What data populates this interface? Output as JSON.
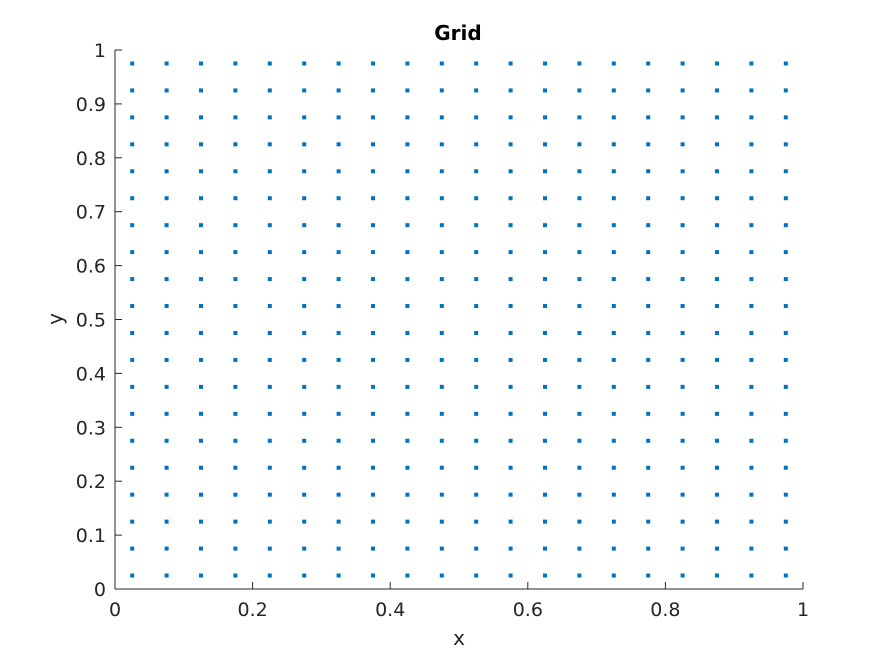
{
  "chart_data": {
    "type": "scatter",
    "title": "Grid",
    "xlabel": "x",
    "ylabel": "y",
    "xlim": [
      0,
      1
    ],
    "ylim": [
      0,
      1
    ],
    "xticks": [
      0,
      0.2,
      0.4,
      0.6,
      0.8,
      1
    ],
    "xtick_labels": [
      "0",
      "0.2",
      "0.4",
      "0.6",
      "0.8",
      "1"
    ],
    "yticks": [
      0,
      0.1,
      0.2,
      0.3,
      0.4,
      0.5,
      0.6,
      0.7,
      0.8,
      0.9,
      1
    ],
    "ytick_labels": [
      "0",
      "0.1",
      "0.2",
      "0.3",
      "0.4",
      "0.5",
      "0.6",
      "0.7",
      "0.8",
      "0.9",
      "1"
    ],
    "grid": false,
    "marker_color": "#0072BD",
    "axis_color": "#262626",
    "series": [
      {
        "x": [
          0.025,
          0.075,
          0.125,
          0.175,
          0.225,
          0.275,
          0.325,
          0.375,
          0.425,
          0.475,
          0.525,
          0.575,
          0.625,
          0.675,
          0.725,
          0.775,
          0.825,
          0.875,
          0.925,
          0.975
        ],
        "y": [
          0.025,
          0.075,
          0.125,
          0.175,
          0.225,
          0.275,
          0.325,
          0.375,
          0.425,
          0.475,
          0.525,
          0.575,
          0.625,
          0.675,
          0.725,
          0.775,
          0.825,
          0.875,
          0.925,
          0.975
        ],
        "layout": "meshgrid"
      }
    ]
  }
}
